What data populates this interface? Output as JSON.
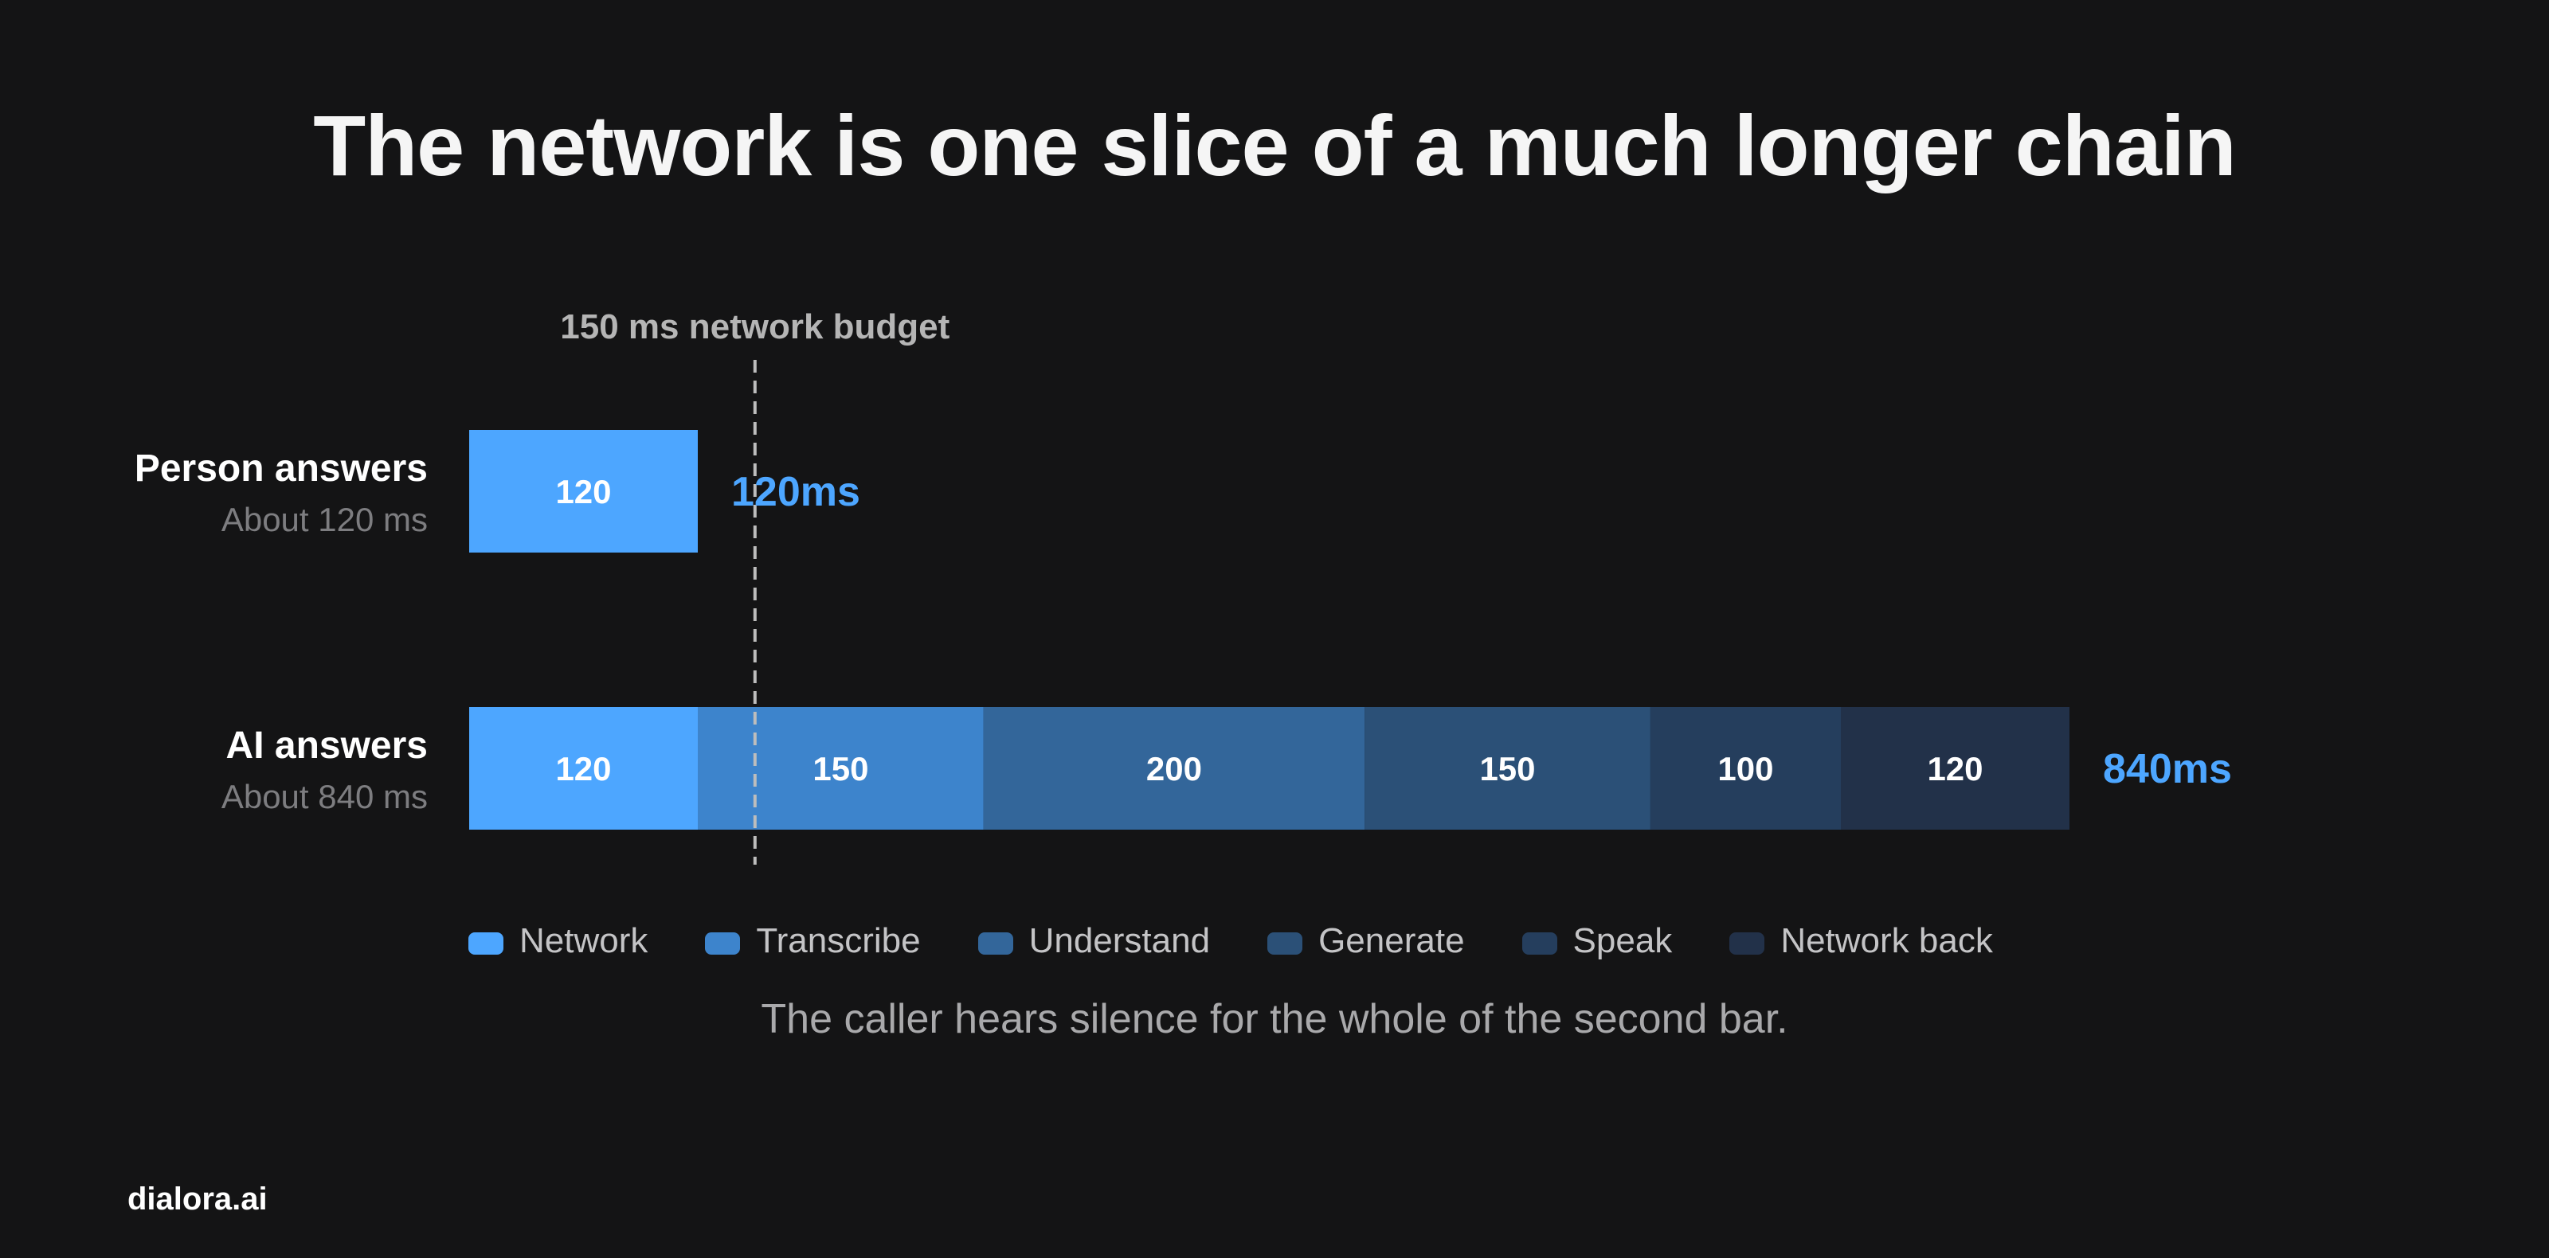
{
  "title": "The network is one slice of a much longer chain",
  "brand": "dialora.ai",
  "caption": "The caller hears silence for the whole of the second bar.",
  "chart_data": {
    "type": "bar",
    "orientation": "horizontal",
    "stacked": true,
    "unit": "ms",
    "reference_line": {
      "value": 150,
      "label": "150 ms network budget",
      "style": "dashed"
    },
    "stages": [
      {
        "name": "Network",
        "color": "#4DA6FF"
      },
      {
        "name": "Transcribe",
        "color": "#3D84CC"
      },
      {
        "name": "Understand",
        "color": "#33669A"
      },
      {
        "name": "Generate",
        "color": "#2B5077"
      },
      {
        "name": "Speak",
        "color": "#253E5D"
      },
      {
        "name": "Network back",
        "color": "#223149"
      }
    ],
    "rows": [
      {
        "name": "Person answers",
        "subtitle": "About 120 ms",
        "total_label": "120ms",
        "values": [
          120
        ]
      },
      {
        "name": "AI answers",
        "subtitle": "About 840 ms",
        "total_label": "840ms",
        "values": [
          120,
          150,
          200,
          150,
          100,
          120
        ]
      }
    ],
    "legend": [
      "Network",
      "Transcribe",
      "Understand",
      "Generate",
      "Speak",
      "Network back"
    ],
    "grid": false,
    "legend_position": "bottom"
  }
}
